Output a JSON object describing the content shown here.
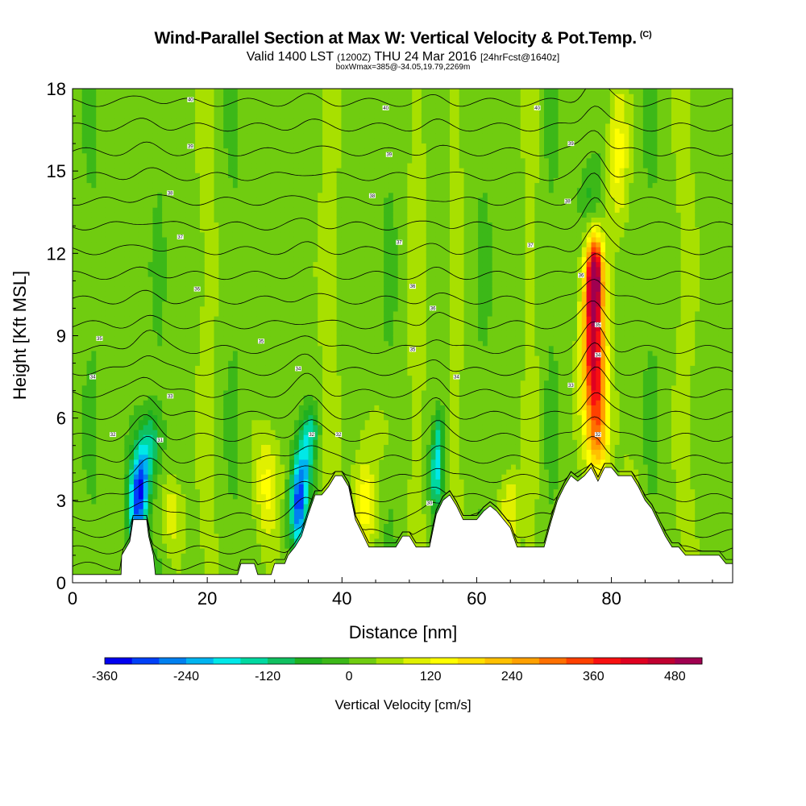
{
  "header": {
    "title": "Wind-Parallel Section at Max W: Vertical Velocity & Pot.Temp.",
    "copyright": "(C)",
    "valid_prefix": "Valid 1400 LST",
    "valid_utc": "(1200Z)",
    "valid_date": "THU 24 Mar 2016",
    "forecast": "[24hrFcst@1640z]",
    "boxwmax": "boxWmax=385@-34.05,19.79,2269m"
  },
  "chart_data": {
    "type": "heatmap",
    "xlabel": "Distance [nm]",
    "ylabel": "Height [Kft MSL]",
    "xlim": [
      0,
      98
    ],
    "ylim": [
      0,
      18
    ],
    "xticks": [
      0,
      20,
      40,
      60,
      80
    ],
    "yticks": [
      0,
      3,
      6,
      9,
      12,
      15,
      18
    ],
    "colorbar": {
      "label": "Vertical Velocity [cm/s]",
      "min": -360,
      "max": 520,
      "step": 40,
      "tick_values": [
        -360,
        -240,
        -120,
        0,
        120,
        240,
        360,
        480
      ],
      "colors": [
        "#0000f0",
        "#0040f8",
        "#0080f0",
        "#00b4f0",
        "#00e8e8",
        "#00d8a0",
        "#10c060",
        "#20b020",
        "#3cb818",
        "#70cc10",
        "#a8e000",
        "#e0f000",
        "#ffff00",
        "#ffe000",
        "#ffc000",
        "#ffa000",
        "#ff7000",
        "#ff4000",
        "#f81010",
        "#e00020",
        "#c00030",
        "#a00050"
      ]
    },
    "background_w": 20,
    "terrain": [
      [
        0,
        0.3
      ],
      [
        6,
        0.3
      ],
      [
        7.2,
        0.3
      ],
      [
        7.3,
        1
      ],
      [
        8.5,
        1.5
      ],
      [
        9,
        2.3
      ],
      [
        11,
        2.3
      ],
      [
        11.3,
        1.7
      ],
      [
        12,
        1
      ],
      [
        12.3,
        0.3
      ],
      [
        22,
        0.3
      ],
      [
        24.5,
        0.3
      ],
      [
        25,
        0.7
      ],
      [
        27,
        0.7
      ],
      [
        27.5,
        0.3
      ],
      [
        29.5,
        0.3
      ],
      [
        30,
        0.7
      ],
      [
        31.5,
        0.7
      ],
      [
        32,
        1
      ],
      [
        33,
        1.3
      ],
      [
        34,
        1.7
      ],
      [
        35,
        2.5
      ],
      [
        36,
        3.2
      ],
      [
        37,
        3.2
      ],
      [
        38,
        3.5
      ],
      [
        39,
        3.9
      ],
      [
        40,
        3.9
      ],
      [
        41,
        3.5
      ],
      [
        42,
        2.3
      ],
      [
        43,
        1.8
      ],
      [
        44,
        1.3
      ],
      [
        48,
        1.3
      ],
      [
        49,
        1.7
      ],
      [
        50,
        1.7
      ],
      [
        51,
        1.3
      ],
      [
        53,
        1.3
      ],
      [
        54,
        2.5
      ],
      [
        55,
        3
      ],
      [
        56,
        3.2
      ],
      [
        57,
        2.8
      ],
      [
        58,
        2.3
      ],
      [
        60,
        2.3
      ],
      [
        61,
        2.6
      ],
      [
        62,
        2.8
      ],
      [
        63,
        2.6
      ],
      [
        64,
        2.3
      ],
      [
        65,
        2
      ],
      [
        66,
        1.3
      ],
      [
        70,
        1.3
      ],
      [
        71,
        2.2
      ],
      [
        72,
        3
      ],
      [
        73,
        3.5
      ],
      [
        74,
        3.9
      ],
      [
        75,
        3.7
      ],
      [
        76,
        3.9
      ],
      [
        77,
        4.2
      ],
      [
        78,
        3.7
      ],
      [
        79,
        4.2
      ],
      [
        80,
        4.2
      ],
      [
        81,
        3.9
      ],
      [
        83,
        3.9
      ],
      [
        84,
        3.5
      ],
      [
        85,
        3
      ],
      [
        86,
        2.7
      ],
      [
        87,
        2.2
      ],
      [
        88,
        1.7
      ],
      [
        89,
        1.3
      ],
      [
        90,
        1.3
      ],
      [
        91,
        1
      ],
      [
        96,
        1
      ],
      [
        97,
        0.7
      ],
      [
        98,
        0.7
      ]
    ],
    "features": [
      {
        "kind": "blob",
        "x": 9.5,
        "y": 2.8,
        "rx": 1.3,
        "ry": 1.6,
        "w": -280
      },
      {
        "kind": "blob",
        "x": 10.5,
        "y": 4,
        "rx": 1.2,
        "ry": 1.5,
        "w": -200
      },
      {
        "kind": "blob",
        "x": 11.8,
        "y": 5.2,
        "rx": 1.2,
        "ry": 1.2,
        "w": -120
      },
      {
        "kind": "blob",
        "x": 33.5,
        "y": 2.8,
        "rx": 1.2,
        "ry": 1.6,
        "w": -300
      },
      {
        "kind": "blob",
        "x": 34.5,
        "y": 4.5,
        "rx": 1.3,
        "ry": 1.5,
        "w": -180
      },
      {
        "kind": "blob",
        "x": 35.5,
        "y": 5.6,
        "rx": 1,
        "ry": 0.8,
        "w": -100
      },
      {
        "kind": "blob",
        "x": 54,
        "y": 4,
        "rx": 1,
        "ry": 1.5,
        "w": -200
      },
      {
        "kind": "blob",
        "x": 54.5,
        "y": 5.5,
        "rx": 0.8,
        "ry": 1,
        "w": -100
      },
      {
        "kind": "blob",
        "x": 77.3,
        "y": 9.5,
        "rx": 1.6,
        "ry": 2.6,
        "w": 380
      },
      {
        "kind": "blob",
        "x": 77.5,
        "y": 11.3,
        "rx": 1.1,
        "ry": 1.3,
        "w": 320
      },
      {
        "kind": "blob",
        "x": 77.8,
        "y": 6.8,
        "rx": 1.8,
        "ry": 2,
        "w": 240
      },
      {
        "kind": "blob",
        "x": 78,
        "y": 5,
        "rx": 1.6,
        "ry": 1.2,
        "w": 140
      },
      {
        "kind": "blob",
        "x": 77,
        "y": 14,
        "rx": 1.6,
        "ry": 1.4,
        "w": -80
      },
      {
        "kind": "blob",
        "x": 81,
        "y": 15.5,
        "rx": 1.5,
        "ry": 2.8,
        "w": 110
      },
      {
        "kind": "blob",
        "x": 29,
        "y": 3.6,
        "rx": 1.8,
        "ry": 2,
        "w": 120
      },
      {
        "kind": "blob",
        "x": 14.5,
        "y": 2.5,
        "rx": 1.8,
        "ry": 1.4,
        "w": 90
      },
      {
        "kind": "blob",
        "x": 43.5,
        "y": 3,
        "rx": 1.6,
        "ry": 1.6,
        "w": 130
      },
      {
        "kind": "blob",
        "x": 65,
        "y": 2.8,
        "rx": 1.5,
        "ry": 1.3,
        "w": 100
      },
      {
        "kind": "blob",
        "x": 83,
        "y": 2.8,
        "rx": 1.5,
        "ry": 1.3,
        "w": 80
      },
      {
        "kind": "blob",
        "x": 45,
        "y": 5.5,
        "rx": 2,
        "ry": 1,
        "w": 60
      },
      {
        "kind": "band",
        "x": 3,
        "w": -20,
        "width": 1.5
      },
      {
        "kind": "band",
        "x": 13,
        "w": -20,
        "width": 1.5
      },
      {
        "kind": "band",
        "x": 20,
        "w": 40,
        "width": 1.5
      },
      {
        "kind": "band",
        "x": 24,
        "w": -20,
        "width": 1.5
      },
      {
        "kind": "band",
        "x": 38,
        "w": 40,
        "width": 1.5
      },
      {
        "kind": "band",
        "x": 47,
        "w": -20,
        "width": 1.5
      },
      {
        "kind": "band",
        "x": 51,
        "w": 40,
        "width": 1.5
      },
      {
        "kind": "band",
        "x": 57,
        "w": 40,
        "width": 1.2
      },
      {
        "kind": "band",
        "x": 61,
        "w": -20,
        "width": 1.5
      },
      {
        "kind": "band",
        "x": 68,
        "w": 40,
        "width": 1.2
      },
      {
        "kind": "band",
        "x": 71,
        "w": -20,
        "width": 1.5
      },
      {
        "kind": "band",
        "x": 86,
        "w": -20,
        "width": 1.5
      },
      {
        "kind": "band",
        "x": 91,
        "w": 40,
        "width": 1.5
      }
    ],
    "theta_base": [
      0.6,
      1.2,
      1.8,
      2.4,
      3.1,
      3.8,
      4.5,
      5.3,
      6.1,
      6.9,
      7.7,
      8.5,
      9.4,
      10.3,
      11.2,
      12.1,
      13,
      13.9,
      14.8,
      15.7,
      16.6,
      17.5
    ],
    "isentrope_labels": [
      {
        "x": 17.5,
        "y": 17.6,
        "text": "40"
      },
      {
        "x": 17.5,
        "y": 15.9,
        "text": "39"
      },
      {
        "x": 14.5,
        "y": 14.2,
        "text": "38"
      },
      {
        "x": 16,
        "y": 12.6,
        "text": "37"
      },
      {
        "x": 18.5,
        "y": 10.7,
        "text": "36"
      },
      {
        "x": 4,
        "y": 8.9,
        "text": "35"
      },
      {
        "x": 3,
        "y": 7.5,
        "text": "34"
      },
      {
        "x": 14.5,
        "y": 6.8,
        "text": "33"
      },
      {
        "x": 6,
        "y": 5.4,
        "text": "32"
      },
      {
        "x": 13,
        "y": 5.2,
        "text": "31"
      },
      {
        "x": 28,
        "y": 8.8,
        "text": "35"
      },
      {
        "x": 33.5,
        "y": 7.8,
        "text": "34"
      },
      {
        "x": 35.5,
        "y": 5.4,
        "text": "32"
      },
      {
        "x": 39.5,
        "y": 5.4,
        "text": "32"
      },
      {
        "x": 46.5,
        "y": 17.3,
        "text": "40"
      },
      {
        "x": 47,
        "y": 15.6,
        "text": "39"
      },
      {
        "x": 44.5,
        "y": 14.1,
        "text": "38"
      },
      {
        "x": 48.5,
        "y": 12.4,
        "text": "37"
      },
      {
        "x": 50.5,
        "y": 10.8,
        "text": "36"
      },
      {
        "x": 53.5,
        "y": 10,
        "text": "36"
      },
      {
        "x": 50.5,
        "y": 8.5,
        "text": "35"
      },
      {
        "x": 57,
        "y": 7.5,
        "text": "34"
      },
      {
        "x": 53,
        "y": 2.9,
        "text": "30"
      },
      {
        "x": 69,
        "y": 17.3,
        "text": "40"
      },
      {
        "x": 74,
        "y": 16,
        "text": "39"
      },
      {
        "x": 73.5,
        "y": 13.9,
        "text": "38"
      },
      {
        "x": 68,
        "y": 12.3,
        "text": "37"
      },
      {
        "x": 75.5,
        "y": 11.2,
        "text": "36"
      },
      {
        "x": 78,
        "y": 9.4,
        "text": "35"
      },
      {
        "x": 78,
        "y": 8.3,
        "text": "34"
      },
      {
        "x": 74,
        "y": 7.2,
        "text": "33"
      },
      {
        "x": 78,
        "y": 5.4,
        "text": "32"
      }
    ]
  }
}
